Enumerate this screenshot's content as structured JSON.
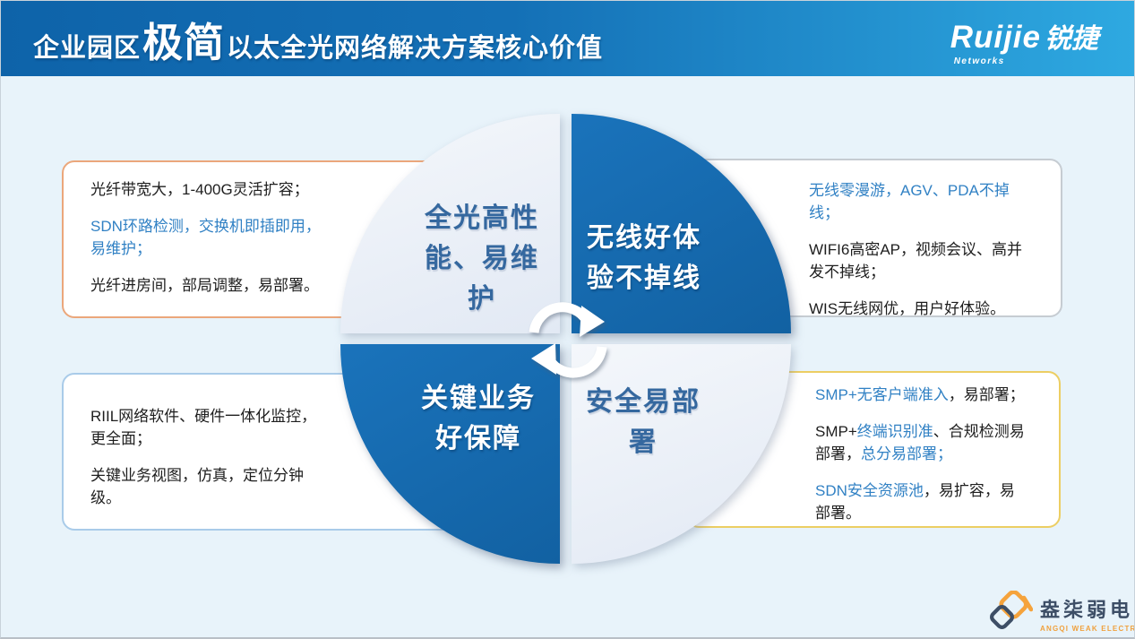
{
  "header": {
    "title_prefix": "企业园区",
    "title_emphasis": "极简",
    "title_suffix": "以太全光网络解决方案核心价值",
    "brand": {
      "en": "Ruijie",
      "cn": "锐捷",
      "sub": "Networks"
    }
  },
  "quadrants": {
    "optical": {
      "label": "全光高性\n能、易维\n护",
      "style": "light"
    },
    "wireless": {
      "label": "无线好体\n验不掉线",
      "style": "dark"
    },
    "monitor": {
      "label": "关键业务\n好保障",
      "style": "dark"
    },
    "security": {
      "label": "安全易部\n署",
      "style": "light"
    }
  },
  "boxes": {
    "optical": {
      "border_color": "#eba77b",
      "paragraphs": [
        [
          {
            "t": "光纤带宽大，1-400G灵活扩容；",
            "c": "dark"
          }
        ],
        [
          {
            "t": "SDN环路检测，交换机即插即用，\n易维护；",
            "c": "blue"
          }
        ],
        [
          {
            "t": "光纤进房间，部局调整，易部署。",
            "c": "dark"
          }
        ]
      ]
    },
    "wireless": {
      "border_color": "#c6ccd2",
      "paragraphs": [
        [
          {
            "t": "无线零漫游，AGV、PDA不掉线；",
            "c": "blue"
          }
        ],
        [
          {
            "t": "WIFI6高密AP，视频会议、高并\n发不掉线；",
            "c": "dark"
          }
        ],
        [
          {
            "t": "WIS无线网优，用户好体验。",
            "c": "dark"
          }
        ]
      ]
    },
    "monitor": {
      "border_color": "#a9cbe9",
      "paragraphs": [
        [
          {
            "t": "RIIL网络软件、硬件一体化监控，\n更全面；",
            "c": "dark"
          }
        ],
        [
          {
            "t": "关键业务视图，仿真，定位分钟\n级。",
            "c": "dark"
          }
        ]
      ]
    },
    "security": {
      "border_color": "#ecce63",
      "paragraphs": [
        [
          {
            "t": "SMP+无客户端准入",
            "c": "blue"
          },
          {
            "t": "，易部署；",
            "c": "dark"
          }
        ],
        [
          {
            "t": "SMP+",
            "c": "dark"
          },
          {
            "t": "终端识别准",
            "c": "blue"
          },
          {
            "t": "、合规检测易\n部署，",
            "c": "dark"
          },
          {
            "t": "总分易部署；",
            "c": "blue"
          }
        ],
        [
          {
            "t": "SDN安全资源池",
            "c": "blue"
          },
          {
            "t": "，易扩容，易\n部署。",
            "c": "dark"
          }
        ]
      ]
    }
  },
  "footer": {
    "company_cn": "盎柒弱电",
    "company_en": "ANGQI WEAK ELECTRICITY"
  },
  "colors": {
    "titlebar_gradient_start": "#0e63a9",
    "titlebar_gradient_end": "#2ea9e1",
    "quadrant_dark_blue": "#1568ae",
    "quadrant_light": "#e9eef7",
    "quadrant_blue_text": "#35689f",
    "box_blue_text": "#3181c4",
    "background": "#e8f3fa",
    "footer_navy": "#3d4e66",
    "footer_orange": "#f0a13e"
  }
}
